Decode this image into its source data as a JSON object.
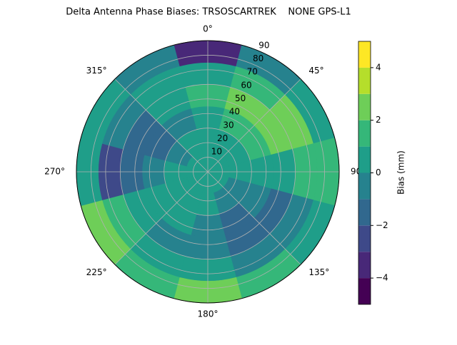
{
  "chart_data": {
    "type": "polar_contour",
    "title": "Delta Antenna Phase Biases: TRSOSCARTREK    NONE GPS-L1",
    "azimuth": [
      0,
      30,
      60,
      90,
      120,
      150,
      180,
      210,
      240,
      270,
      300,
      330
    ],
    "zenith_bins": [
      0,
      15,
      30,
      45,
      60,
      75,
      90
    ],
    "values": [
      [
        0.5,
        0.5,
        0.5,
        1.5,
        0.5,
        -3.5
      ],
      [
        0.5,
        0.5,
        1.5,
        2.5,
        1.5,
        -0.5
      ],
      [
        0.5,
        0.5,
        1.5,
        2.5,
        2.5,
        0.5
      ],
      [
        0.5,
        0.5,
        0.5,
        0.5,
        1.5,
        1.5
      ],
      [
        0.5,
        -0.5,
        -0.5,
        -1.5,
        -0.5,
        0.5
      ],
      [
        0.5,
        -0.5,
        -1.5,
        -1.5,
        -0.5,
        1.5
      ],
      [
        0.5,
        0.5,
        -0.5,
        -0.5,
        0.5,
        2.5
      ],
      [
        0.5,
        0.5,
        0.5,
        -0.5,
        0.5,
        1.5
      ],
      [
        0.5,
        0.5,
        0.5,
        0.5,
        1.5,
        2.5
      ],
      [
        0.5,
        0.5,
        -0.5,
        -1.5,
        -2.5,
        0.5
      ],
      [
        0.5,
        -0.5,
        -1.5,
        -1.5,
        -0.5,
        0.5
      ],
      [
        0.5,
        0.5,
        -0.5,
        0.5,
        0.5,
        -0.5
      ]
    ],
    "rlim": [
      0,
      90
    ],
    "rticks": [
      10,
      20,
      30,
      40,
      50,
      60,
      70,
      80,
      90
    ],
    "thetaticks": [
      {
        "value": 0,
        "label": "0°"
      },
      {
        "value": 45,
        "label": "45°"
      },
      {
        "value": 90,
        "label": "90"
      },
      {
        "value": 135,
        "label": "135°"
      },
      {
        "value": 180,
        "label": "180°"
      },
      {
        "value": 225,
        "label": "225°"
      },
      {
        "value": 270,
        "label": "270°"
      },
      {
        "value": 315,
        "label": "315°"
      }
    ],
    "levels": [
      -5,
      -4,
      -3,
      -2,
      -1,
      0,
      1,
      2,
      3,
      4,
      5
    ],
    "colors": [
      "#440154",
      "#482878",
      "#3e4989",
      "#31688e",
      "#26828e",
      "#1f9e89",
      "#35b779",
      "#6ece58",
      "#b5de2b",
      "#fde725"
    ],
    "colorbar_label": "Bias (mm)",
    "colorbar_ticks": [
      {
        "value": -4,
        "label": "−4"
      },
      {
        "value": -2,
        "label": "−2"
      },
      0,
      2,
      4
    ],
    "grid": true
  }
}
